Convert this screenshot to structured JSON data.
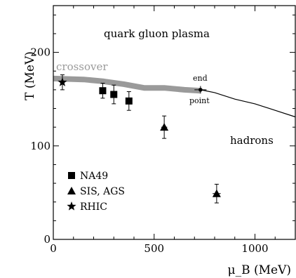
{
  "chart_data": {
    "type": "scatter",
    "xlabel": "μ_B (MeV)",
    "ylabel": "T (MeV)",
    "xlim": [
      0,
      1200
    ],
    "ylim": [
      0,
      250
    ],
    "x_ticks": [
      0,
      500,
      1000
    ],
    "y_ticks": [
      0,
      100,
      200
    ],
    "x_tick_labels": [
      "0",
      "500",
      "1000"
    ],
    "y_tick_labels": [
      "0",
      "100",
      "200"
    ],
    "grid": false,
    "legend_placement": "bottom-left",
    "annotations": {
      "qgp": "quark gluon plasma",
      "hadrons": "hadrons",
      "crossover": "crossover",
      "end": "end",
      "point": "point"
    },
    "crossover_band": {
      "color": "#9a9a9a",
      "points": [
        [
          0,
          172
        ],
        [
          150,
          171
        ],
        [
          250,
          169
        ],
        [
          350,
          166
        ],
        [
          450,
          162
        ],
        [
          550,
          162
        ],
        [
          650,
          160
        ],
        [
          730,
          159
        ]
      ]
    },
    "phase_boundary_line": {
      "points": [
        [
          730,
          160
        ],
        [
          800,
          157
        ],
        [
          900,
          150
        ],
        [
          1000,
          145
        ],
        [
          1100,
          138
        ],
        [
          1200,
          131
        ]
      ]
    },
    "end_point": {
      "x": 730,
      "y": 160,
      "xerr": 30,
      "yerr": 4
    },
    "series": [
      {
        "name": "NA49",
        "marker": "square",
        "points": [
          {
            "x": 245,
            "y": 159,
            "yerr": 8
          },
          {
            "x": 300,
            "y": 155,
            "yerr": 10
          },
          {
            "x": 375,
            "y": 148,
            "yerr": 10
          }
        ]
      },
      {
        "name": "SIS, AGS",
        "marker": "triangle",
        "points": [
          {
            "x": 550,
            "y": 120,
            "yerr": 12,
            "xerr": 15
          },
          {
            "x": 810,
            "y": 49,
            "yerr": 10,
            "xerr": 20
          }
        ]
      },
      {
        "name": "RHIC",
        "marker": "star",
        "points": [
          {
            "x": 45,
            "y": 168,
            "yerr": 8
          }
        ]
      }
    ]
  }
}
